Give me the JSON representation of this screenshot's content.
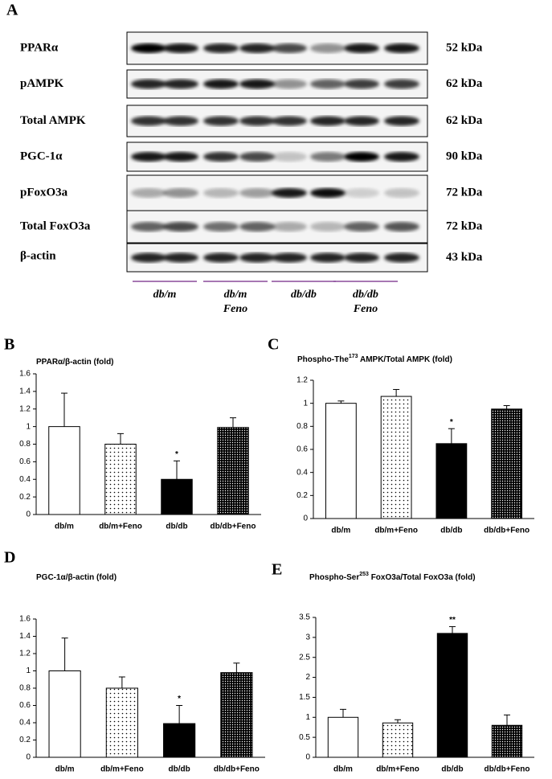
{
  "blot": {
    "panel_label": "A",
    "rows": [
      {
        "protein": "PPARα",
        "kda": "52 kDa"
      },
      {
        "protein": "pAMPK",
        "kda": "62 kDa"
      },
      {
        "protein": "Total AMPK",
        "kda": "62 kDa"
      },
      {
        "protein": "PGC-1α",
        "kda": "90 kDa"
      },
      {
        "protein": "pFoxO3a",
        "kda": "72 kDa"
      },
      {
        "protein": "Total FoxO3a",
        "kda": "72 kDa"
      },
      {
        "protein": "β-actin",
        "kda": "43 kDa"
      }
    ],
    "groups": [
      [
        "db/m"
      ],
      [
        "db/m",
        "Feno"
      ],
      [
        "db/db"
      ],
      [
        "db/db",
        "Feno"
      ]
    ]
  },
  "chart_data": [
    {
      "type": "bar",
      "panel_label": "B",
      "title_parts": [
        {
          "text": "PPARα/β-actin (fold)"
        }
      ],
      "categories": [
        "db/m",
        "db/m+Feno",
        "db/db",
        "db/db+Feno"
      ],
      "values": [
        1.0,
        0.8,
        0.4,
        0.99
      ],
      "errors": [
        0.38,
        0.12,
        0.21,
        0.11
      ],
      "annotations": [
        null,
        null,
        "*",
        null
      ],
      "bar_styles": [
        "white",
        "dots",
        "black",
        "dense-dots"
      ],
      "ylim": [
        0,
        1.6
      ],
      "yticks": [
        0,
        0.2,
        0.4,
        0.6,
        0.8,
        1,
        1.2,
        1.4,
        1.6
      ]
    },
    {
      "type": "bar",
      "panel_label": "C",
      "title_parts": [
        {
          "text": "Phospho-The"
        },
        {
          "text": "173",
          "sup": true
        },
        {
          "text": " AMPK/Total AMPK (fold)"
        }
      ],
      "categories": [
        "db/m",
        "db/m+Feno",
        "db/db",
        "db/db+Feno"
      ],
      "values": [
        1.0,
        1.06,
        0.65,
        0.95
      ],
      "errors": [
        0.02,
        0.06,
        0.13,
        0.03
      ],
      "annotations": [
        null,
        null,
        "*",
        null
      ],
      "bar_styles": [
        "white",
        "dots",
        "black",
        "dense-dots"
      ],
      "ylim": [
        0,
        1.2
      ],
      "yticks": [
        0,
        0.2,
        0.4,
        0.6,
        0.8,
        1,
        1.2
      ]
    },
    {
      "type": "bar",
      "panel_label": "D",
      "title_parts": [
        {
          "text": "PGC-1α/β-actin (fold)"
        }
      ],
      "categories": [
        "db/m",
        "db/m+Feno",
        "db/db",
        "db/db+Feno"
      ],
      "values": [
        1.0,
        0.8,
        0.39,
        0.98
      ],
      "errors": [
        0.38,
        0.13,
        0.21,
        0.11
      ],
      "annotations": [
        null,
        null,
        "*",
        null
      ],
      "bar_styles": [
        "white",
        "dots",
        "black",
        "dense-dots"
      ],
      "ylim": [
        0,
        1.6
      ],
      "yticks": [
        0,
        0.2,
        0.4,
        0.6,
        0.8,
        1,
        1.2,
        1.4,
        1.6
      ]
    },
    {
      "type": "bar",
      "panel_label": "E",
      "title_parts": [
        {
          "text": "Phospho-Ser"
        },
        {
          "text": "253",
          "sup": true
        },
        {
          "text": " FoxO3a/Total FoxO3a (fold)"
        }
      ],
      "categories": [
        "db/m",
        "db/m+Feno",
        "db/db",
        "db/db+Feno"
      ],
      "values": [
        1.0,
        0.86,
        3.1,
        0.8
      ],
      "errors": [
        0.2,
        0.08,
        0.17,
        0.26
      ],
      "annotations": [
        null,
        null,
        "**",
        null
      ],
      "bar_styles": [
        "white",
        "dots",
        "black",
        "dense-dots"
      ],
      "ylim": [
        0,
        3.5
      ],
      "yticks": [
        0,
        0.5,
        1,
        1.5,
        2,
        2.5,
        3,
        3.5
      ]
    }
  ]
}
